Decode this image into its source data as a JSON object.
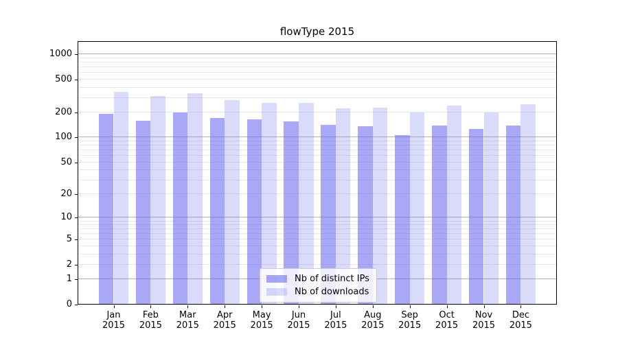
{
  "chart_data": {
    "type": "bar",
    "title": "flowType 2015",
    "categories": [
      "Jan",
      "Feb",
      "Mar",
      "Apr",
      "May",
      "Jun",
      "Jul",
      "Aug",
      "Sep",
      "Oct",
      "Nov",
      "Dec"
    ],
    "category_year": "2015",
    "series": [
      {
        "name": "Nb of distinct IPs",
        "color": "#6060f0",
        "opacity": 0.55,
        "values": [
          190,
          157,
          198,
          170,
          164,
          155,
          139,
          134,
          105,
          138,
          124,
          136
        ]
      },
      {
        "name": "Nb of downloads",
        "color": "#6060f0",
        "opacity": 0.235,
        "values": [
          350,
          310,
          335,
          275,
          256,
          257,
          222,
          223,
          196,
          240,
          198,
          249
        ]
      }
    ],
    "xlabel": "",
    "ylabel": "",
    "y_scale": "log10(value+1)",
    "y_tick_values": [
      0,
      1,
      2,
      5,
      10,
      20,
      50,
      100,
      200,
      500,
      1000
    ],
    "y_major_gridline_values": [
      1,
      10,
      100,
      1000
    ],
    "ylim": [
      0,
      1430
    ],
    "grid": true,
    "legend_position": "inside lower-center"
  },
  "colors": {
    "bar_distinct_ips_rendered": "#a7a7f7",
    "bar_downloads_rendered": "#dadafd",
    "grid_major": "#b3b3b3",
    "grid_minor": "#e8e8e8",
    "axis_frame": "#000000",
    "legend_border": "#cccccc",
    "background": "#ffffff"
  }
}
